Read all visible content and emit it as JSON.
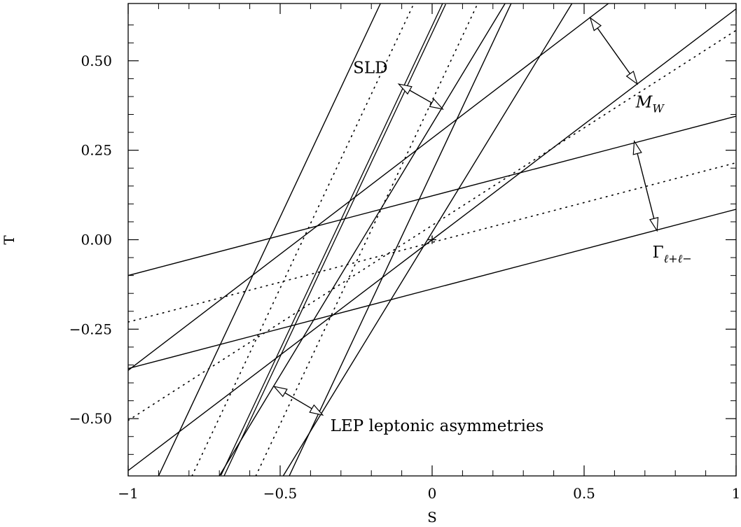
{
  "chart_data": {
    "type": "line",
    "xlabel": "S",
    "ylabel": "T",
    "xlim": [
      -1,
      1
    ],
    "ylim": [
      -0.66,
      0.66
    ],
    "x_ticks": [
      {
        "value": -1,
        "label": "−1"
      },
      {
        "value": -0.5,
        "label": "−0.5"
      },
      {
        "value": 0,
        "label": "0"
      },
      {
        "value": 0.5,
        "label": "0.5"
      },
      {
        "value": 1,
        "label": "1"
      }
    ],
    "y_ticks": [
      {
        "value": -0.5,
        "label": "−0.50"
      },
      {
        "value": -0.25,
        "label": "−0.25"
      },
      {
        "value": 0,
        "label": "0.00"
      },
      {
        "value": 0.25,
        "label": "0.25"
      },
      {
        "value": 0.5,
        "label": "0.50"
      }
    ],
    "grid": false,
    "central_point": {
      "x": 0,
      "y": 0
    },
    "bands": [
      {
        "label": "SLD",
        "central": {
          "points": [
            [
              -0.69,
              -0.66
            ],
            [
              0.04,
              0.66
            ]
          ],
          "style": "double"
        },
        "bounds": [
          {
            "points": [
              [
                -0.9,
                -0.66
              ],
              [
                -0.17,
                0.66
              ]
            ],
            "style": "solid"
          },
          {
            "points": [
              [
                -0.79,
                -0.66
              ],
              [
                -0.06,
                0.66
              ]
            ],
            "style": "dotted"
          },
          {
            "points": [
              [
                -0.58,
                -0.66
              ],
              [
                0.15,
                0.66
              ]
            ],
            "style": "dotted"
          },
          {
            "points": [
              [
                -0.47,
                -0.66
              ],
              [
                0.26,
                0.66
              ]
            ],
            "style": "solid"
          }
        ],
        "arrow": {
          "from": [
            -0.11,
            0.435
          ],
          "to": [
            0.035,
            0.365
          ]
        }
      },
      {
        "label": "LEP leptonic asymmetries",
        "bounds": [
          {
            "points": [
              [
                -0.7,
                -0.66
              ],
              [
                0.24,
                0.66
              ]
            ],
            "style": "solid"
          },
          {
            "points": [
              [
                -0.49,
                -0.66
              ],
              [
                0.46,
                0.66
              ]
            ],
            "style": "solid"
          }
        ],
        "arrow": {
          "from": [
            -0.52,
            -0.41
          ],
          "to": [
            -0.36,
            -0.49
          ]
        }
      },
      {
        "label": "M_W",
        "bounds": [
          {
            "points": [
              [
                -1,
                -0.365
              ],
              [
                0.58,
                0.66
              ]
            ],
            "style": "solid"
          },
          {
            "points": [
              [
                -1,
                -0.505
              ],
              [
                1,
                0.585
              ]
            ],
            "style": "dotted"
          },
          {
            "points": [
              [
                -1,
                -0.645
              ],
              [
                1,
                0.645
              ]
            ],
            "style": "solid"
          }
        ],
        "arrow": {
          "from": [
            0.52,
            0.62
          ],
          "to": [
            0.675,
            0.435
          ]
        }
      },
      {
        "label": "Γℓ+ℓ−",
        "bounds": [
          {
            "points": [
              [
                -1,
                -0.1
              ],
              [
                1,
                0.345
              ]
            ],
            "style": "solid"
          },
          {
            "points": [
              [
                -1,
                -0.23
              ],
              [
                1,
                0.215
              ]
            ],
            "style": "dotted"
          },
          {
            "points": [
              [
                -1,
                -0.36
              ],
              [
                1,
                0.085
              ]
            ],
            "style": "solid"
          }
        ],
        "arrow": {
          "from": [
            0.665,
            0.275
          ],
          "to": [
            0.74,
            0.025
          ]
        }
      }
    ],
    "annotations": [
      {
        "id": "sld",
        "text": "SLD",
        "at": [
          -0.26,
          0.465
        ]
      },
      {
        "id": "lep",
        "text": "LEP leptonic asymmetries",
        "at": [
          -0.335,
          -0.535
        ]
      },
      {
        "id": "mw",
        "main": "M",
        "sub": "W",
        "at": [
          0.67,
          0.37
        ]
      },
      {
        "id": "gamma",
        "main": "Γ",
        "sub": "ℓ+ℓ−",
        "at": [
          0.725,
          -0.05
        ]
      }
    ]
  }
}
